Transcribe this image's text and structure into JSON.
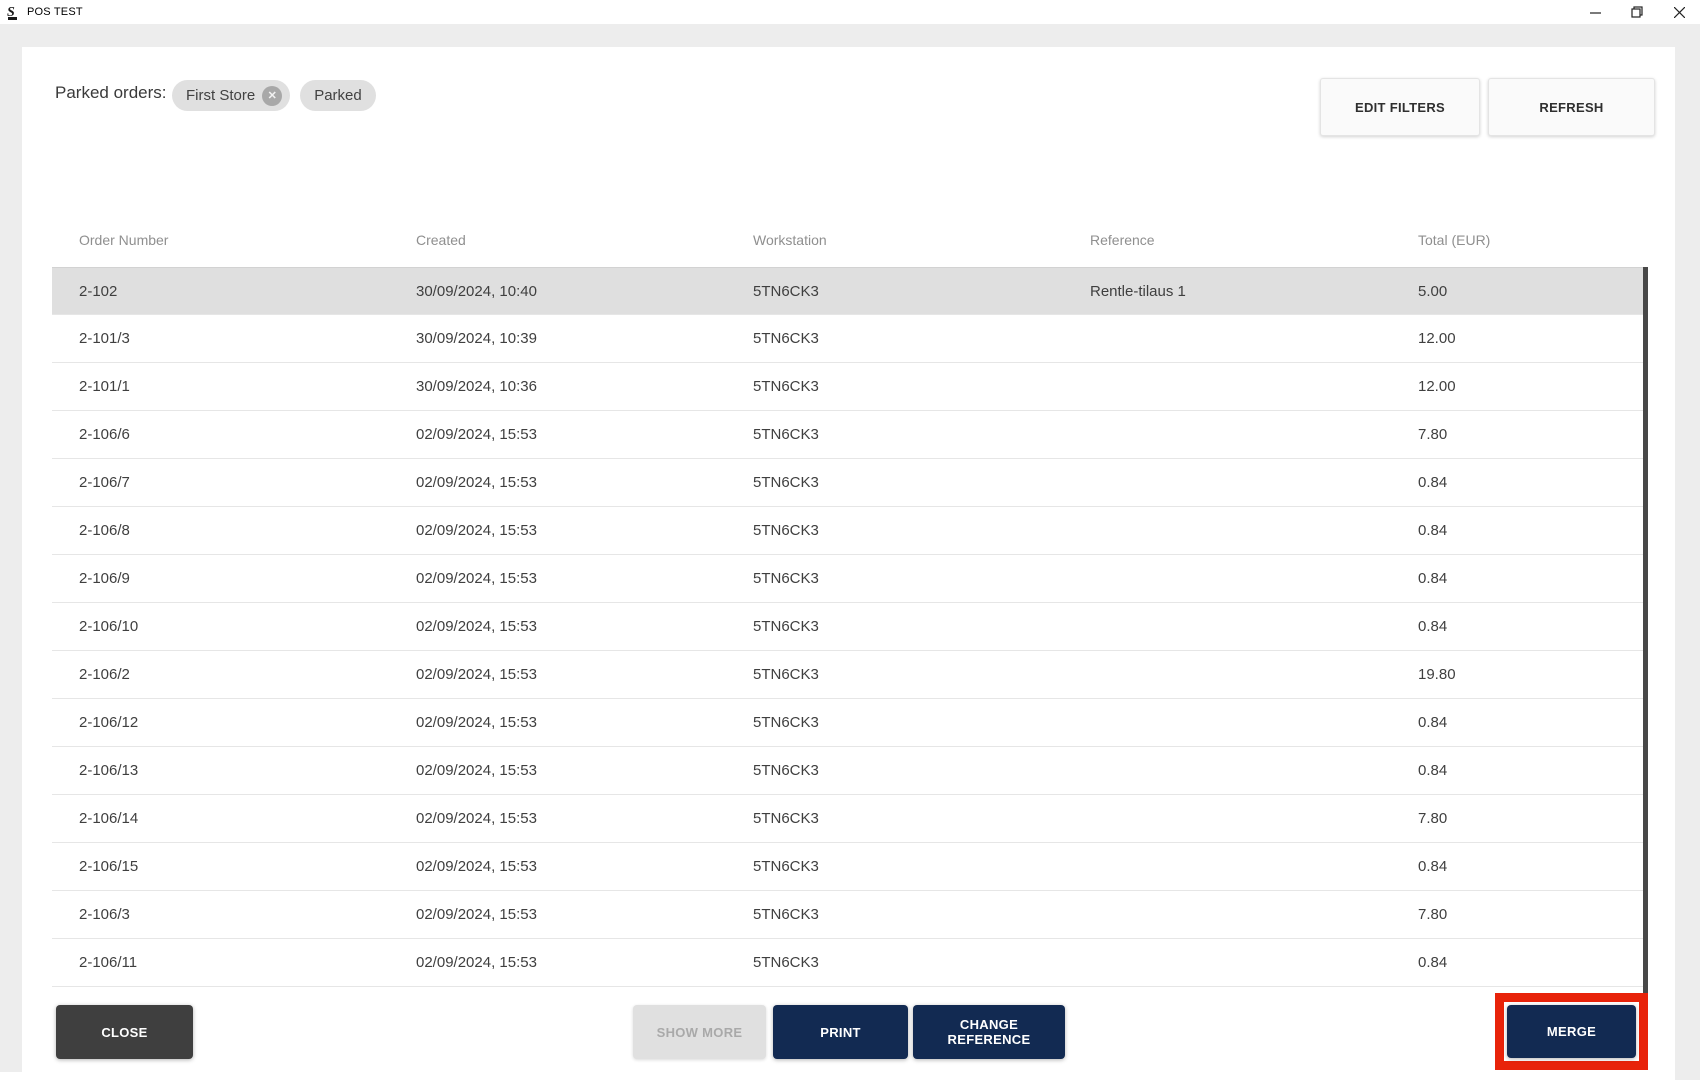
{
  "window": {
    "title": "POS TEST",
    "controls": [
      {
        "name": "minimize"
      },
      {
        "name": "restore"
      },
      {
        "name": "close"
      }
    ]
  },
  "filters": {
    "label": "Parked orders:",
    "chips": [
      {
        "label": "First Store",
        "removable": true
      },
      {
        "label": "Parked",
        "removable": false
      }
    ]
  },
  "toolbar": {
    "edit_filters_label": "EDIT FILTERS",
    "refresh_label": "REFRESH"
  },
  "table": {
    "columns": [
      "Order Number",
      "Created",
      "Workstation",
      "Reference",
      "Total (EUR)"
    ],
    "rows": [
      {
        "order_number": "2-102",
        "created": "30/09/2024, 10:40",
        "workstation": "5TN6CK3",
        "reference": "Rentle-tilaus 1",
        "total": "5.00",
        "selected": true
      },
      {
        "order_number": "2-101/3",
        "created": "30/09/2024, 10:39",
        "workstation": "5TN6CK3",
        "reference": "",
        "total": "12.00",
        "selected": false
      },
      {
        "order_number": "2-101/1",
        "created": "30/09/2024, 10:36",
        "workstation": "5TN6CK3",
        "reference": "",
        "total": "12.00",
        "selected": false
      },
      {
        "order_number": "2-106/6",
        "created": "02/09/2024, 15:53",
        "workstation": "5TN6CK3",
        "reference": "",
        "total": "7.80",
        "selected": false
      },
      {
        "order_number": "2-106/7",
        "created": "02/09/2024, 15:53",
        "workstation": "5TN6CK3",
        "reference": "",
        "total": "0.84",
        "selected": false
      },
      {
        "order_number": "2-106/8",
        "created": "02/09/2024, 15:53",
        "workstation": "5TN6CK3",
        "reference": "",
        "total": "0.84",
        "selected": false
      },
      {
        "order_number": "2-106/9",
        "created": "02/09/2024, 15:53",
        "workstation": "5TN6CK3",
        "reference": "",
        "total": "0.84",
        "selected": false
      },
      {
        "order_number": "2-106/10",
        "created": "02/09/2024, 15:53",
        "workstation": "5TN6CK3",
        "reference": "",
        "total": "0.84",
        "selected": false
      },
      {
        "order_number": "2-106/2",
        "created": "02/09/2024, 15:53",
        "workstation": "5TN6CK3",
        "reference": "",
        "total": "19.80",
        "selected": false
      },
      {
        "order_number": "2-106/12",
        "created": "02/09/2024, 15:53",
        "workstation": "5TN6CK3",
        "reference": "",
        "total": "0.84",
        "selected": false
      },
      {
        "order_number": "2-106/13",
        "created": "02/09/2024, 15:53",
        "workstation": "5TN6CK3",
        "reference": "",
        "total": "0.84",
        "selected": false
      },
      {
        "order_number": "2-106/14",
        "created": "02/09/2024, 15:53",
        "workstation": "5TN6CK3",
        "reference": "",
        "total": "7.80",
        "selected": false
      },
      {
        "order_number": "2-106/15",
        "created": "02/09/2024, 15:53",
        "workstation": "5TN6CK3",
        "reference": "",
        "total": "0.84",
        "selected": false
      },
      {
        "order_number": "2-106/3",
        "created": "02/09/2024, 15:53",
        "workstation": "5TN6CK3",
        "reference": "",
        "total": "7.80",
        "selected": false
      },
      {
        "order_number": "2-106/11",
        "created": "02/09/2024, 15:53",
        "workstation": "5TN6CK3",
        "reference": "",
        "total": "0.84",
        "selected": false
      }
    ]
  },
  "footer": {
    "close_label": "CLOSE",
    "show_more_label": "SHOW MORE",
    "print_label": "PRINT",
    "change_reference_label": "CHANGE REFERENCE",
    "merge_label": "MERGE"
  },
  "colors": {
    "page_bg": "#ededed",
    "accent_navy": "#122a52",
    "highlight_red": "#e8230a",
    "selected_row": "#dfdfdf",
    "close_button": "#3f3f3f"
  }
}
